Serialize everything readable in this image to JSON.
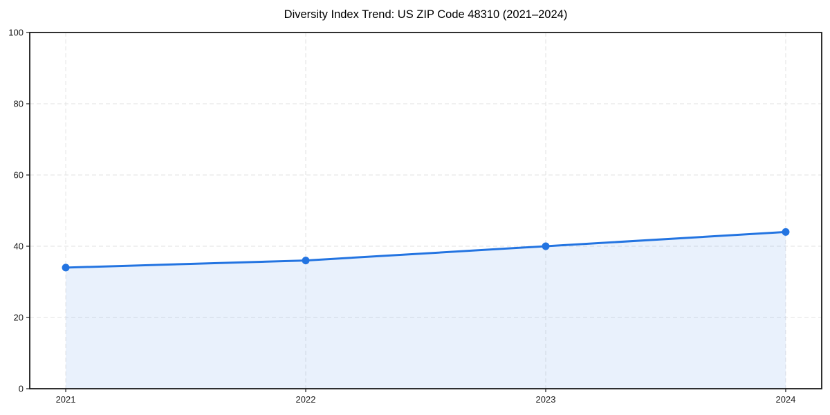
{
  "chart_data": {
    "type": "area",
    "title": "Diversity Index Trend: US ZIP Code 48310 (2021–2024)",
    "x": [
      2021,
      2022,
      2023,
      2024
    ],
    "values": [
      34,
      36,
      40,
      44
    ],
    "xlabel": "",
    "ylabel": "",
    "ylim": [
      0,
      100
    ],
    "yticks": [
      0,
      20,
      40,
      60,
      80,
      100
    ],
    "xticks": [
      "2021",
      "2022",
      "2023",
      "2024"
    ],
    "grid": "dashed-both-axes",
    "legend_position": "none",
    "marker": "circle",
    "colors": {
      "line": "#2374e1",
      "marker": "#2374e1",
      "fill": "#2374e1",
      "fill_opacity": 0.1,
      "grid": "#e2e2e2",
      "spine": "#1a1a1a",
      "tick_label": "#1a1a1a",
      "title": "#000000",
      "background": "#ffffff"
    }
  }
}
